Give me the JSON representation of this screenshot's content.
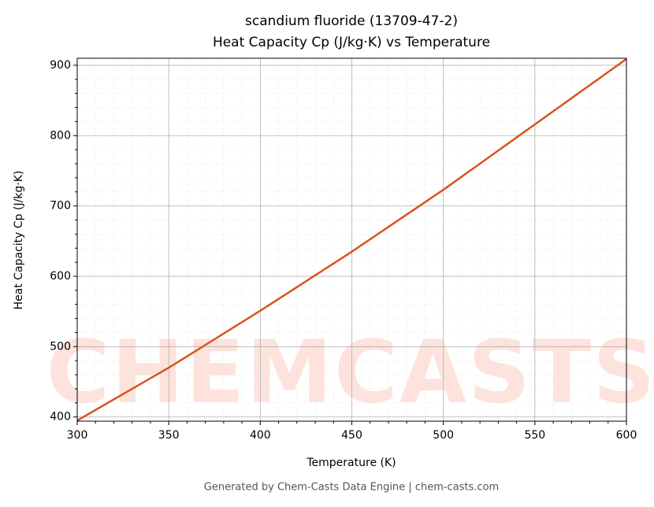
{
  "chart_data": {
    "type": "line",
    "title": "scandium fluoride (13709-47-2)",
    "subtitle": "Heat Capacity Cp (J/kg·K) vs Temperature",
    "x_label": "Temperature (K)",
    "y_label": "Heat Capacity Cp (J/kg·K)",
    "footer": "Generated by Chem-Casts Data Engine | chem-casts.com",
    "watermark": "CHEMCASTS",
    "x": [
      300,
      350,
      400,
      450,
      500,
      550,
      600
    ],
    "series": [
      {
        "name": "Heat Capacity Cp",
        "color": "#d9531e",
        "values": [
          395,
          470,
          551,
          635,
          723,
          816,
          909
        ]
      }
    ],
    "xlim": [
      300,
      600
    ],
    "xticks": [
      300,
      350,
      400,
      450,
      500,
      550,
      600
    ],
    "ylim": [
      394,
      910
    ],
    "yticks": [
      400,
      500,
      600,
      700,
      800,
      900
    ],
    "grid": true,
    "minor_grid": true
  }
}
